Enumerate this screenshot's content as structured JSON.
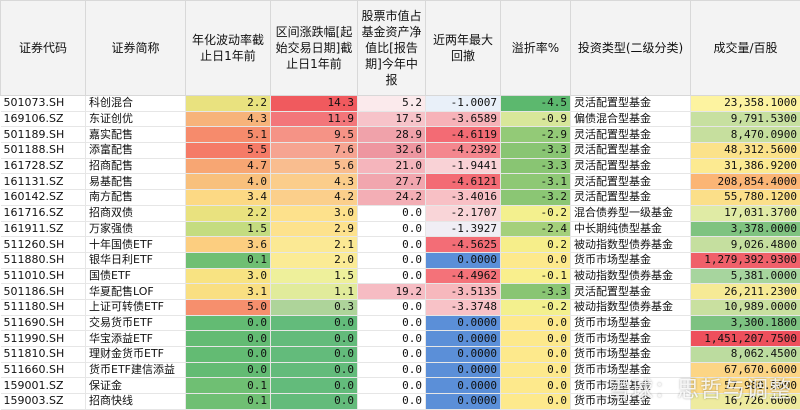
{
  "headers": [
    "证券代码",
    "证券简称",
    "年化波动率截止日1年前",
    "区间涨跌幅[起始交易日期]截止日1年前",
    "股票市值占基金资产净值比[报告期]今年中报",
    "近两年最大回撤",
    "溢折率%",
    "投资类型(二级分类)",
    "成交量/百股"
  ],
  "rows": [
    {
      "code": "501073.SH",
      "name": "科创混合",
      "vol": "2.2",
      "chg": "14.3",
      "stock": "5.2",
      "dd": "-1.0007",
      "prem": "-4.5",
      "type": "灵活配置型基金",
      "volume": "23,358.1000",
      "c": [
        "#e9e27f",
        "#f05a5e",
        "#fbeaec",
        "#e9f0f9",
        "#5cb86e",
        "#fdf3a0"
      ]
    },
    {
      "code": "169106.SZ",
      "name": "东证创优",
      "vol": "4.3",
      "chg": "11.9",
      "stock": "17.5",
      "dd": "-3.6589",
      "prem": "-0.9",
      "type": "偏债混合型基金",
      "volume": "9,791.5300",
      "c": [
        "#f7b37a",
        "#f3767a",
        "#f7c3c9",
        "#f7b2b8",
        "#d8e79a",
        "#c7e0a0"
      ]
    },
    {
      "code": "501189.SH",
      "name": "嘉实配售",
      "vol": "5.1",
      "chg": "9.5",
      "stock": "28.9",
      "dd": "-4.6119",
      "prem": "-2.9",
      "type": "灵活配置型基金",
      "volume": "8,470.0900",
      "c": [
        "#f68b6c",
        "#f59386",
        "#f0a2aa",
        "#f36b74",
        "#93ca77",
        "#c6df9e"
      ]
    },
    {
      "code": "501188.SH",
      "name": "添富配售",
      "vol": "5.5",
      "chg": "7.6",
      "stock": "32.6",
      "dd": "-4.2392",
      "prem": "-3.3",
      "type": "灵活配置型基金",
      "volume": "48,312.5600",
      "c": [
        "#f57b67",
        "#f6a491",
        "#ee96a0",
        "#f4878e",
        "#89c573",
        "#fbe28a"
      ]
    },
    {
      "code": "161728.SZ",
      "name": "招商配售",
      "vol": "4.7",
      "chg": "5.6",
      "stock": "21.0",
      "dd": "-1.9441",
      "prem": "-3.3",
      "type": "灵活配置型基金",
      "volume": "31,386.9200",
      "c": [
        "#f7a673",
        "#f9bd8f",
        "#f5b5bc",
        "#f9d2d6",
        "#89c573",
        "#fcea91"
      ]
    },
    {
      "code": "161131.SZ",
      "name": "易基配售",
      "vol": "4.0",
      "chg": "4.3",
      "stock": "27.7",
      "dd": "-4.6121",
      "prem": "-3.1",
      "type": "灵活配置型基金",
      "volume": "208,854.4000",
      "c": [
        "#f8c07c",
        "#fbcd8b",
        "#f1a6ae",
        "#f36b74",
        "#8ec875",
        "#fbb575"
      ]
    },
    {
      "code": "160142.SZ",
      "name": "南方配售",
      "vol": "3.4",
      "chg": "4.2",
      "stock": "24.2",
      "dd": "-3.4016",
      "prem": "-3.2",
      "type": "灵活配置型基金",
      "volume": "55,780.1200",
      "c": [
        "#fcd984",
        "#fbcf8b",
        "#f3aeb5",
        "#f8c0c5",
        "#8bc674",
        "#fbdf89"
      ]
    },
    {
      "code": "161716.SZ",
      "name": "招商双债",
      "vol": "2.2",
      "chg": "3.0",
      "stock": "0.0",
      "dd": "-2.1707",
      "prem": "-0.2",
      "type": "混合债券型一级基金",
      "volume": "17,031.3700",
      "c": [
        "#e9e27f",
        "#fde18c",
        "#ffffff",
        "#f9d5d8",
        "#f3f08e",
        "#e0eba5"
      ]
    },
    {
      "code": "161911.SZ",
      "name": "万家强债",
      "vol": "1.5",
      "chg": "2.9",
      "stock": "0.0",
      "dd": "-1.3927",
      "prem": "-2.4",
      "type": "中长期纯债型基金",
      "volume": "3,378.0000",
      "c": [
        "#c4dc80",
        "#fde28d",
        "#ffffff",
        "#f0eef5",
        "#a4d07b",
        "#7fc380"
      ]
    },
    {
      "code": "511260.SH",
      "name": "十年国债ETF",
      "vol": "3.6",
      "chg": "2.1",
      "stock": "0.0",
      "dd": "-4.5625",
      "prem": "0.2",
      "type": "被动指数型债券基金",
      "volume": "9,026.4800",
      "c": [
        "#fcce80",
        "#fbe994",
        "#ffffff",
        "#f36d76",
        "#f6ee8a",
        "#c5df9f"
      ]
    },
    {
      "code": "511880.SH",
      "name": "银华日利ETF",
      "vol": "0.1",
      "chg": "2.0",
      "stock": "0.0",
      "dd": "0.0000",
      "prem": "0.0",
      "type": "货币市场型基金",
      "volume": "1,279,392.9300",
      "c": [
        "#6fbf73",
        "#fbeb95",
        "#ffffff",
        "#5b8fd8",
        "#fde98c",
        "#f0606a"
      ]
    },
    {
      "code": "511010.SH",
      "name": "国债ETF",
      "vol": "3.0",
      "chg": "1.5",
      "stock": "0.0",
      "dd": "-4.4962",
      "prem": "-0.1",
      "type": "被动指数型债券基金",
      "volume": "5,381.0000",
      "c": [
        "#f8e382",
        "#eef09b",
        "#ffffff",
        "#f47279",
        "#f9ef8d",
        "#a7d59e"
      ]
    },
    {
      "code": "501186.SH",
      "name": "华夏配售LOF",
      "vol": "3.1",
      "chg": "1.1",
      "stock": "19.2",
      "dd": "-3.5135",
      "prem": "-3.3",
      "type": "灵活配置型基金",
      "volume": "26,211.2300",
      "c": [
        "#f9df82",
        "#e1eb9b",
        "#f6bcc3",
        "#f7b8bd",
        "#89c573",
        "#f6ea95"
      ]
    },
    {
      "code": "511180.SH",
      "name": "上证可转债ETF",
      "vol": "5.0",
      "chg": "0.3",
      "stock": "0.0",
      "dd": "-3.3748",
      "prem": "-0.2",
      "type": "被动指数型债券基金",
      "volume": "10,989.0000",
      "c": [
        "#f68f6d",
        "#aed49a",
        "#ffffff",
        "#f8c2c7",
        "#f3f08e",
        "#c9e0a0"
      ]
    },
    {
      "code": "511690.SH",
      "name": "交易货币ETF",
      "vol": "0.0",
      "chg": "0.0",
      "stock": "0.0",
      "dd": "0.0000",
      "prem": "0.0",
      "type": "货币市场型基金",
      "volume": "3,300.1800",
      "c": [
        "#63bb73",
        "#63bb7b",
        "#ffffff",
        "#5b8fd8",
        "#fde98c",
        "#7dc281"
      ]
    },
    {
      "code": "511990.SH",
      "name": "华宝添益ETF",
      "vol": "0.0",
      "chg": "0.0",
      "stock": "0.0",
      "dd": "0.0000",
      "prem": "0.0",
      "type": "货币市场型基金",
      "volume": "1,451,207.7500",
      "c": [
        "#63bb73",
        "#63bb7b",
        "#ffffff",
        "#5b8fd8",
        "#fde98c",
        "#ee4f5c"
      ]
    },
    {
      "code": "511810.SH",
      "name": "理财金货币ETF",
      "vol": "0.0",
      "chg": "0.0",
      "stock": "0.0",
      "dd": "0.0000",
      "prem": "0.0",
      "type": "货币市场型基金",
      "volume": "8,062.4500",
      "c": [
        "#63bb73",
        "#63bb7b",
        "#ffffff",
        "#5b8fd8",
        "#fde98c",
        "#bcdc9f"
      ]
    },
    {
      "code": "511660.SH",
      "name": "货币ETF建信添益",
      "vol": "0.0",
      "chg": "0.0",
      "stock": "0.0",
      "dd": "0.0000",
      "prem": "0.0",
      "type": "货币市场型基金",
      "volume": "67,670.6000",
      "c": [
        "#63bb73",
        "#63bb7b",
        "#ffffff",
        "#5b8fd8",
        "#fde98c",
        "#fcd585"
      ]
    },
    {
      "code": "159001.SZ",
      "name": "保证金",
      "vol": "0.1",
      "chg": "0.0",
      "stock": "0.0",
      "dd": "0.0000",
      "prem": "0.0",
      "type": "货币市场型基金",
      "volume": "57,980.8000",
      "c": [
        "#6fbf73",
        "#63bb7b",
        "#ffffff",
        "#5b8fd8",
        "#fde98c",
        "#fcdb87"
      ]
    },
    {
      "code": "159003.SZ",
      "name": "招商快线",
      "vol": "0.1",
      "chg": "0.0",
      "stock": "0.0",
      "dd": "0.0000",
      "prem": "0.0",
      "type": "货币市场型基金",
      "volume": "16,726.6000",
      "c": [
        "#6fbf73",
        "#63bb7b",
        "#ffffff",
        "#5b8fd8",
        "#fde98c",
        "#eeeb9f"
      ]
    }
  ],
  "watermark": "雪球：思哲与调整"
}
